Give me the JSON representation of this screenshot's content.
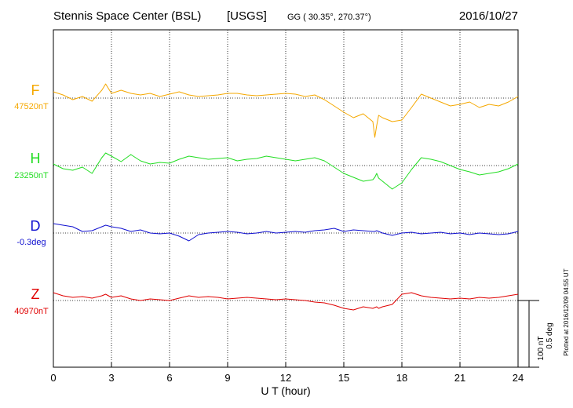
{
  "header": {
    "station": "Stennis Space Center (BSL)",
    "agency": "[USGS]",
    "coords": "GG ( 30.35°, 270.37°)",
    "date": "2016/10/27"
  },
  "footer": {
    "plotted": "Plotted at 2016/12/09 04:55 UT"
  },
  "scale_bar": {
    "label1": "100 nT",
    "label2": "0.5 deg"
  },
  "chart_data": {
    "type": "line",
    "xlabel": "U T (hour)",
    "xlim": [
      0,
      24
    ],
    "xticks": [
      0,
      3,
      6,
      9,
      12,
      15,
      18,
      21,
      24
    ],
    "x": [
      0,
      0.5,
      1,
      1.5,
      2,
      2.5,
      2.7,
      3,
      3.5,
      4,
      4.5,
      5,
      5.5,
      6,
      6.5,
      7,
      7.5,
      8,
      8.5,
      9,
      9.5,
      10,
      10.5,
      11,
      11.5,
      12,
      12.5,
      13,
      13.5,
      14,
      14.5,
      15,
      15.5,
      16,
      16.5,
      16.6,
      16.7,
      16.8,
      17,
      17.5,
      18,
      18.5,
      19,
      19.5,
      20,
      20.5,
      21,
      21.5,
      22,
      22.5,
      23,
      23.5,
      24
    ],
    "series": [
      {
        "name": "F",
        "baseline": "47520nT",
        "color": "#f5a800",
        "values": [
          8,
          4,
          -2,
          2,
          -4,
          10,
          18,
          6,
          10,
          6,
          4,
          6,
          2,
          5,
          8,
          4,
          2,
          3,
          4,
          6,
          6,
          4,
          3,
          4,
          5,
          6,
          5,
          2,
          4,
          -2,
          -10,
          -18,
          -25,
          -20,
          -30,
          -50,
          -35,
          -22,
          -25,
          -30,
          -28,
          -12,
          5,
          0,
          -5,
          -10,
          -8,
          -5,
          -12,
          -8,
          -10,
          -5,
          2
        ]
      },
      {
        "name": "H",
        "baseline": "23250nT",
        "color": "#22dd22",
        "values": [
          2,
          -4,
          -6,
          -2,
          -10,
          10,
          16,
          12,
          5,
          14,
          6,
          2,
          4,
          3,
          8,
          12,
          10,
          8,
          9,
          10,
          6,
          8,
          9,
          12,
          10,
          8,
          6,
          8,
          10,
          6,
          -2,
          -10,
          -15,
          -20,
          -18,
          -15,
          -10,
          -16,
          -20,
          -30,
          -22,
          -5,
          10,
          8,
          5,
          0,
          -5,
          -8,
          -12,
          -10,
          -8,
          -4,
          2
        ]
      },
      {
        "name": "D",
        "baseline": "-0.3deg",
        "color": "#1010d0",
        "values": [
          12,
          10,
          8,
          2,
          3,
          8,
          10,
          8,
          6,
          2,
          4,
          0,
          -1,
          0,
          -4,
          -10,
          -2,
          0,
          1,
          2,
          1,
          -1,
          0,
          2,
          0,
          1,
          2,
          1,
          3,
          4,
          6,
          2,
          4,
          3,
          2,
          2,
          3,
          2,
          0,
          -3,
          0,
          1,
          -1,
          0,
          1,
          -1,
          0,
          -2,
          0,
          -1,
          -2,
          -1,
          2
        ]
      },
      {
        "name": "Z",
        "baseline": "40970nT",
        "color": "#e00000",
        "values": [
          10,
          6,
          4,
          5,
          3,
          6,
          8,
          4,
          6,
          2,
          0,
          2,
          1,
          0,
          3,
          6,
          4,
          5,
          4,
          2,
          3,
          4,
          3,
          2,
          1,
          2,
          1,
          0,
          -2,
          -3,
          -6,
          -10,
          -12,
          -8,
          -10,
          -9,
          -8,
          -10,
          -8,
          -5,
          8,
          10,
          6,
          4,
          3,
          2,
          3,
          2,
          4,
          3,
          4,
          6,
          8
        ]
      }
    ]
  }
}
